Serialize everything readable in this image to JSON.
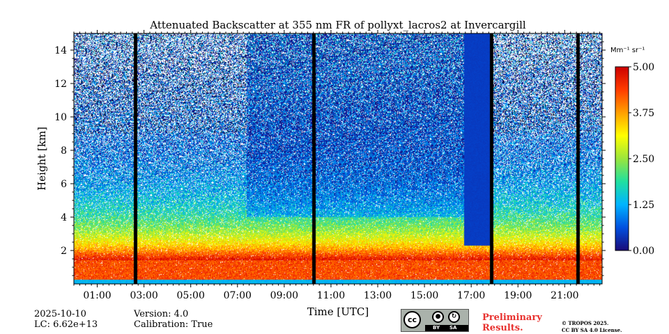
{
  "chart_data": {
    "type": "heatmap",
    "title": "Attenuated Backscatter at 355 nm FR of pollyxt_lacros2 at Invercargill",
    "xlabel": "Time [UTC]",
    "ylabel": "Height [km]",
    "xlim": [
      0,
      22.6
    ],
    "ylim": [
      0,
      15
    ],
    "x_ticks": [
      "01:00",
      "03:00",
      "05:00",
      "07:00",
      "09:00",
      "11:00",
      "13:00",
      "15:00",
      "17:00",
      "19:00",
      "21:00"
    ],
    "x_tick_hours": [
      1,
      3,
      5,
      7,
      9,
      11,
      13,
      15,
      17,
      19,
      21
    ],
    "y_ticks": [
      2,
      4,
      6,
      8,
      10,
      12,
      14
    ],
    "colorbar": {
      "unit_label": "Mm⁻¹ sr⁻¹",
      "range": [
        0,
        5
      ],
      "ticks": [
        "0.00",
        "1.25",
        "2.50",
        "3.75",
        "5.00"
      ],
      "tick_values": [
        0,
        1.25,
        2.5,
        3.75,
        5
      ]
    },
    "missing_data_hours": [
      [
        2.55,
        2.7
      ],
      [
        10.2,
        10.35
      ],
      [
        21.5,
        21.65
      ],
      [
        17.8,
        17.95
      ]
    ],
    "clear_high_region_hours": [
      [
        7.4,
        10.2
      ],
      [
        10.35,
        17.0
      ]
    ],
    "low_cloud_hours": [
      [
        16.7,
        17.95
      ]
    ],
    "colors": {
      "stops": [
        "#1a0a78",
        "#0050e0",
        "#00b4ff",
        "#20e0a0",
        "#9ae63c",
        "#ffff00",
        "#ffa000",
        "#ff3c00",
        "#cc0000"
      ]
    }
  },
  "footer": {
    "date": "2025-10-10",
    "lc": "LC: 6.62e+13",
    "version": "Version: 4.0",
    "calibration": "Calibration: True",
    "preliminary": "Preliminary",
    "results": "Results.",
    "copyright_line1": "© TROPOS 2025.",
    "copyright_line2": "CC BY SA 4.0 License.",
    "license_badge": {
      "cc": "cc",
      "by": "BY",
      "sa": "SA"
    }
  }
}
